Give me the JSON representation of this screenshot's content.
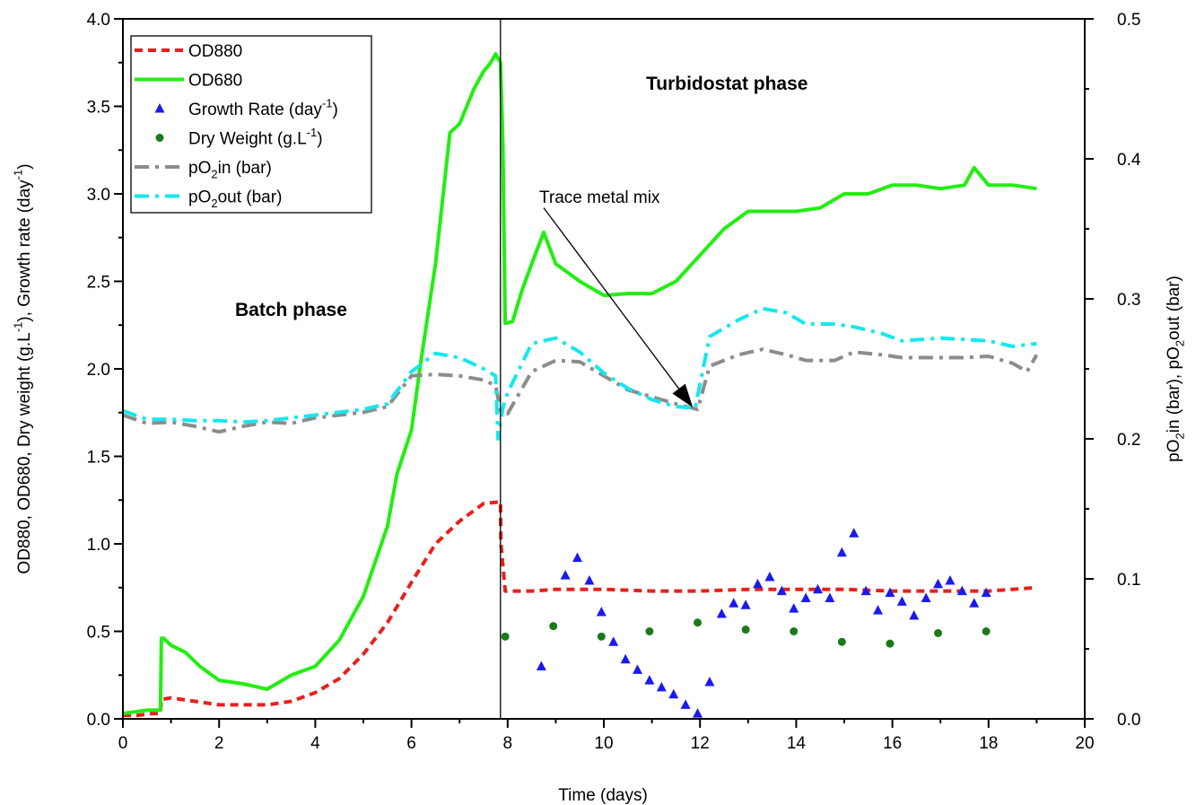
{
  "chart_data": {
    "type": "line",
    "xlabel": "Time (days)",
    "ylabel_left_parts": [
      "OD880, OD680, Dry weight (g.L",
      "-1",
      "), Growth rate (day",
      "-1",
      ")"
    ],
    "ylabel_right_parts": [
      "pO",
      "2",
      "in (bar), pO",
      "2",
      "out (bar)"
    ],
    "xlim": [
      0,
      20
    ],
    "ylim_left": [
      0,
      4
    ],
    "ylim_right": [
      0,
      0.5
    ],
    "x_ticks": [
      "0",
      "2",
      "4",
      "6",
      "8",
      "10",
      "12",
      "14",
      "16",
      "18",
      "20"
    ],
    "y_left_ticks": [
      "0.0",
      "0.5",
      "1.0",
      "1.5",
      "2.0",
      "2.5",
      "3.0",
      "3.5",
      "4.0"
    ],
    "y_right_ticks": [
      "0.0",
      "0.1",
      "0.2",
      "0.3",
      "0.4",
      "0.5"
    ],
    "grid": false,
    "legend_position": "top-left",
    "divider_x": 7.85,
    "annotations": {
      "batch": "Batch phase",
      "turbido": "Turbidostat phase",
      "trace": "Trace metal mix",
      "trace_arrow": {
        "from": [
          8.75,
          2.92
        ],
        "to": [
          11.85,
          1.78
        ]
      }
    },
    "legend": [
      {
        "key": "od880",
        "parts": [
          "OD880"
        ]
      },
      {
        "key": "od680",
        "parts": [
          "OD680"
        ]
      },
      {
        "key": "growth",
        "parts": [
          "Growth Rate (day",
          "-1",
          ")"
        ]
      },
      {
        "key": "dry",
        "parts": [
          "Dry Weight (g.L",
          "-1",
          ")"
        ]
      },
      {
        "key": "po2in",
        "parts": [
          "pO",
          "2",
          "in (bar)"
        ]
      },
      {
        "key": "po2out",
        "parts": [
          "pO",
          "2",
          "out (bar)"
        ]
      }
    ],
    "series": [
      {
        "key": "od880",
        "axis": "left",
        "style": "line",
        "color": "#e8201c",
        "dash": "9,6",
        "width": 4,
        "x": [
          0,
          0.3,
          0.6,
          0.78,
          0.8,
          1.0,
          1.5,
          2.0,
          2.5,
          3.0,
          3.5,
          4.0,
          4.5,
          5.0,
          5.5,
          6.0,
          6.5,
          7.0,
          7.5,
          7.85,
          7.86,
          7.95,
          8.5,
          9,
          10,
          11,
          12,
          13,
          14,
          15,
          16,
          17,
          18,
          19
        ],
        "y": [
          0.02,
          0.02,
          0.03,
          0.03,
          0.11,
          0.12,
          0.1,
          0.08,
          0.08,
          0.08,
          0.1,
          0.15,
          0.23,
          0.37,
          0.55,
          0.78,
          1.0,
          1.13,
          1.23,
          1.24,
          1.0,
          0.73,
          0.73,
          0.74,
          0.74,
          0.73,
          0.73,
          0.74,
          0.74,
          0.74,
          0.73,
          0.73,
          0.73,
          0.75
        ]
      },
      {
        "key": "od680",
        "axis": "left",
        "style": "line",
        "color": "#22ee11",
        "dash": "",
        "width": 4,
        "x": [
          0,
          0.5,
          0.78,
          0.8,
          0.85,
          1.0,
          1.3,
          1.6,
          2.0,
          2.5,
          3.0,
          3.5,
          4.0,
          4.5,
          5.0,
          5.5,
          5.7,
          6.0,
          6.2,
          6.5,
          6.8,
          7.0,
          7.3,
          7.5,
          7.65,
          7.75,
          7.85,
          7.9,
          7.95,
          8.1,
          8.3,
          8.5,
          8.75,
          9,
          9.5,
          10,
          10.5,
          11,
          11.5,
          12,
          12.5,
          13,
          13.5,
          14,
          14.5,
          15,
          15.5,
          16,
          16.5,
          17,
          17.5,
          17.7,
          18,
          18.5,
          19
        ],
        "y": [
          0.03,
          0.05,
          0.05,
          0.46,
          0.46,
          0.42,
          0.38,
          0.3,
          0.22,
          0.2,
          0.17,
          0.25,
          0.3,
          0.45,
          0.7,
          1.1,
          1.4,
          1.65,
          2.05,
          2.6,
          3.35,
          3.4,
          3.6,
          3.7,
          3.75,
          3.8,
          3.75,
          3.3,
          2.26,
          2.27,
          2.45,
          2.6,
          2.78,
          2.6,
          2.5,
          2.42,
          2.43,
          2.43,
          2.5,
          2.65,
          2.8,
          2.9,
          2.9,
          2.9,
          2.92,
          3.0,
          3.0,
          3.05,
          3.05,
          3.03,
          3.05,
          3.15,
          3.05,
          3.05,
          3.03
        ]
      },
      {
        "key": "po2in",
        "axis": "right",
        "style": "line",
        "color": "#8c8c8c",
        "dash": "16,7,4,7",
        "width": 4,
        "x": [
          0,
          0.5,
          1,
          1.5,
          2,
          2.5,
          3,
          3.5,
          4,
          4.5,
          5,
          5.5,
          6,
          6.5,
          7,
          7.5,
          7.75,
          7.85,
          8.0,
          8.5,
          9,
          9.5,
          10,
          10.5,
          11,
          11.5,
          11.95,
          12.2,
          12.8,
          13.3,
          13.8,
          14.2,
          14.8,
          15.2,
          15.8,
          16.2,
          17,
          17.5,
          18,
          18.5,
          18.8,
          19
        ],
        "y": [
          0.217,
          0.211,
          0.212,
          0.209,
          0.205,
          0.209,
          0.212,
          0.211,
          0.215,
          0.217,
          0.219,
          0.223,
          0.245,
          0.246,
          0.245,
          0.242,
          0.238,
          0.22,
          0.218,
          0.248,
          0.256,
          0.255,
          0.245,
          0.235,
          0.23,
          0.225,
          0.221,
          0.252,
          0.26,
          0.264,
          0.26,
          0.256,
          0.256,
          0.262,
          0.26,
          0.258,
          0.258,
          0.258,
          0.259,
          0.254,
          0.248,
          0.26
        ]
      },
      {
        "key": "po2out",
        "axis": "right",
        "style": "line",
        "color": "#14e8ee",
        "dash": "16,7,4,7",
        "width": 4,
        "x": [
          0,
          0.5,
          1,
          1.5,
          2,
          2.5,
          3,
          3.5,
          4,
          4.5,
          5,
          5.5,
          6,
          6.5,
          7,
          7.5,
          7.75,
          7.8,
          7.9,
          8.0,
          8.5,
          9,
          9.5,
          10,
          10.5,
          11,
          11.5,
          11.9,
          12.2,
          12.8,
          13.3,
          13.8,
          14.2,
          14.8,
          15.2,
          15.8,
          16.2,
          17,
          17.5,
          18,
          18.5,
          19
        ],
        "y": [
          0.22,
          0.214,
          0.214,
          0.213,
          0.213,
          0.212,
          0.213,
          0.215,
          0.217,
          0.219,
          0.221,
          0.225,
          0.248,
          0.261,
          0.258,
          0.25,
          0.245,
          0.2,
          0.222,
          0.233,
          0.268,
          0.272,
          0.262,
          0.247,
          0.236,
          0.228,
          0.223,
          0.222,
          0.273,
          0.285,
          0.293,
          0.29,
          0.282,
          0.282,
          0.28,
          0.275,
          0.27,
          0.272,
          0.271,
          0.27,
          0.266,
          0.268
        ]
      },
      {
        "key": "growth",
        "axis": "left",
        "style": "triangle",
        "color": "#1a1aee",
        "x": [
          8.7,
          9.2,
          9.45,
          9.7,
          9.95,
          10.2,
          10.45,
          10.7,
          10.95,
          11.2,
          11.45,
          11.7,
          11.95,
          12.2,
          12.45,
          12.7,
          12.95,
          13.2,
          13.45,
          13.7,
          13.95,
          14.2,
          14.45,
          14.7,
          14.95,
          15.2,
          15.45,
          15.7,
          15.95,
          16.2,
          16.45,
          16.7,
          16.95,
          17.2,
          17.45,
          17.7,
          17.95
        ],
        "y": [
          0.3,
          0.82,
          0.92,
          0.79,
          0.61,
          0.44,
          0.34,
          0.28,
          0.22,
          0.18,
          0.14,
          0.08,
          0.03,
          0.21,
          0.6,
          0.66,
          0.65,
          0.77,
          0.81,
          0.73,
          0.63,
          0.69,
          0.74,
          0.69,
          0.95,
          1.06,
          0.73,
          0.62,
          0.72,
          0.67,
          0.59,
          0.69,
          0.77,
          0.79,
          0.73,
          0.66,
          0.72
        ]
      },
      {
        "key": "dry",
        "axis": "left",
        "style": "dot",
        "color": "#1a7a1a",
        "x": [
          7.95,
          8.95,
          9.95,
          10.95,
          11.95,
          12.95,
          13.95,
          14.95,
          15.95,
          16.95,
          17.95
        ],
        "y": [
          0.47,
          0.53,
          0.47,
          0.5,
          0.55,
          0.51,
          0.5,
          0.44,
          0.43,
          0.49,
          0.5
        ]
      }
    ]
  }
}
